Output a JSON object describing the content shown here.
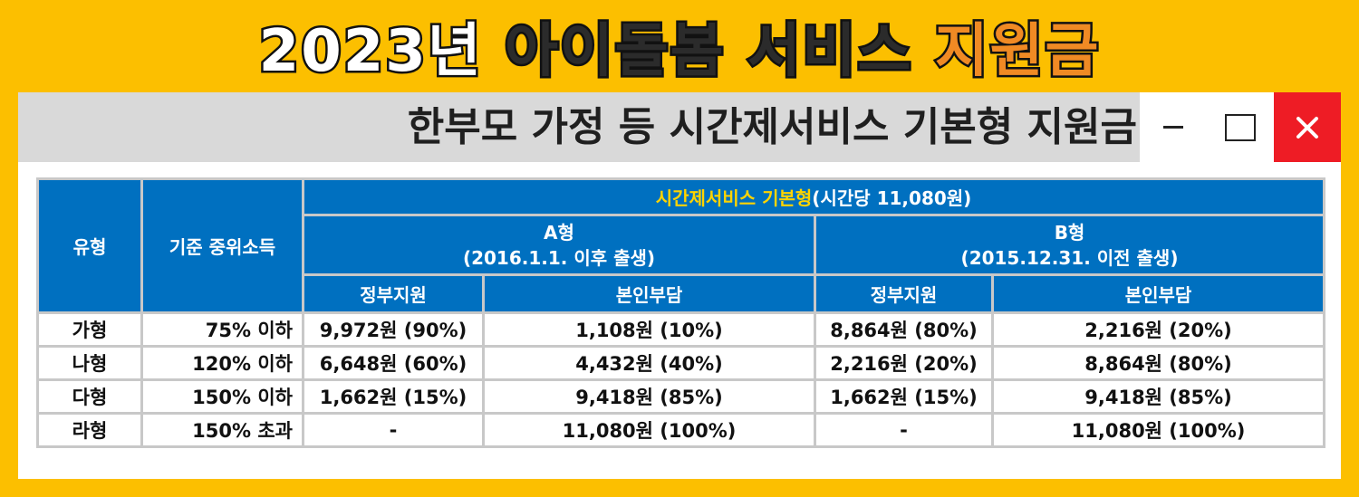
{
  "header": {
    "title_year": "2023년",
    "title_mid": "아이돌봄 서비스",
    "title_end": "지원금"
  },
  "window": {
    "title": "한부모 가정 등 시간제서비스 기본형 지원금",
    "minimize_icon": "minimize-icon",
    "maximize_icon": "maximize-icon",
    "close_icon": "close-icon",
    "close_glyph": "✕",
    "close_color": "#ee1c25"
  },
  "table": {
    "col_type": "유형",
    "col_income": "기준 중위소득",
    "group_accent": "시간제서비스 기본형",
    "group_rest": "(시간당 11,080원)",
    "a_title": "A형",
    "a_sub": "(2016.1.1. 이후 출생)",
    "b_title": "B형",
    "b_sub": "(2015.12.31. 이전 출생)",
    "a_gov": "정부지원",
    "a_self": "본인부담",
    "b_gov": "정부지원",
    "b_self": "본인부담",
    "rows": [
      {
        "type": "가형",
        "income": "75% 이하",
        "a_gov": "9,972원 (90%)",
        "a_self": "1,108원 (10%)",
        "b_gov": "8,864원 (80%)",
        "b_self": "2,216원 (20%)"
      },
      {
        "type": "나형",
        "income": "120% 이하",
        "a_gov": "6,648원 (60%)",
        "a_self": "4,432원 (40%)",
        "b_gov": "2,216원 (20%)",
        "b_self": "8,864원 (80%)"
      },
      {
        "type": "다형",
        "income": "150% 이하",
        "a_gov": "1,662원 (15%)",
        "a_self": "9,418원 (85%)",
        "b_gov": "1,662원 (15%)",
        "b_self": "9,418원 (85%)"
      },
      {
        "type": "라형",
        "income": "150% 초과",
        "a_gov": "-",
        "a_self": "11,080원 (100%)",
        "b_gov": "-",
        "b_self": "11,080원 (100%)"
      }
    ]
  },
  "colors": {
    "background": "#fcbf00",
    "header_blue": "#0070c0",
    "accent_yellow": "#ffd400",
    "title_orange": "#f08a24"
  }
}
